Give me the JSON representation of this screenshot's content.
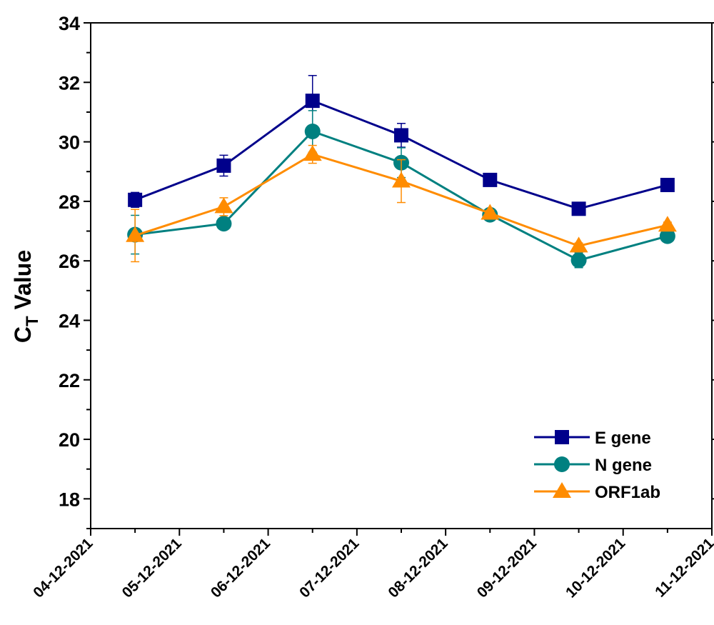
{
  "chart_data": {
    "type": "line",
    "ylabel_main": "C",
    "ylabel_sub": "T",
    "ylabel_rest": " Value",
    "ylim": [
      17,
      34
    ],
    "yticks": [
      "18",
      "20",
      "22",
      "24",
      "26",
      "28",
      "30",
      "32",
      "34"
    ],
    "xticks": [
      "04-12-2021",
      "05-12-2021",
      "06-12-2021",
      "07-12-2021",
      "08-12-2021",
      "09-12-2021",
      "10-12-2021",
      "11-12-2021"
    ],
    "legend_position": "bottom-right",
    "series": [
      {
        "name": "E gene",
        "color": "#00008B",
        "marker": "square",
        "x": [
          0.5,
          1.5,
          2.5,
          3.5,
          4.5,
          5.5,
          6.5
        ],
        "values": [
          28.05,
          29.2,
          31.38,
          30.22,
          28.72,
          27.75,
          28.55
        ],
        "errors": [
          0.25,
          0.35,
          0.85,
          0.4,
          0.12,
          0.1,
          0.1
        ]
      },
      {
        "name": "N gene",
        "color": "#008080",
        "marker": "circle",
        "x": [
          0.5,
          1.5,
          2.5,
          3.5,
          4.5,
          5.5,
          6.5
        ],
        "values": [
          26.88,
          27.25,
          30.35,
          29.3,
          27.55,
          26.02,
          26.83
        ],
        "errors": [
          0.65,
          0.15,
          0.7,
          0.5,
          0.1,
          0.25,
          0.1
        ]
      },
      {
        "name": "ORF1ab",
        "color": "#FF8C00",
        "marker": "triangle",
        "x": [
          0.5,
          1.5,
          2.5,
          3.5,
          4.5,
          5.5,
          6.5
        ],
        "values": [
          26.85,
          27.82,
          29.58,
          28.68,
          27.6,
          26.5,
          27.2
        ],
        "errors": [
          0.88,
          0.3,
          0.3,
          0.72,
          0.1,
          0.1,
          0.1
        ]
      }
    ]
  }
}
